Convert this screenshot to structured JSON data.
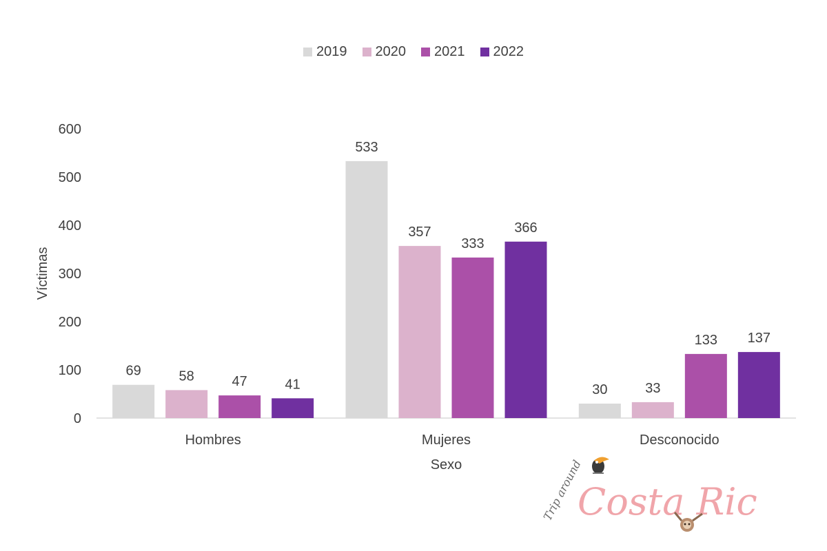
{
  "chart_data": {
    "type": "bar",
    "categories": [
      "Hombres",
      "Mujeres",
      "Desconocido"
    ],
    "series": [
      {
        "name": "2019",
        "values": [
          69,
          533,
          30
        ],
        "color": "#d9d9d9"
      },
      {
        "name": "2020",
        "values": [
          58,
          357,
          33
        ],
        "color": "#dcb2cc"
      },
      {
        "name": "2021",
        "values": [
          47,
          333,
          133
        ],
        "color": "#ab50a8"
      },
      {
        "name": "2022",
        "values": [
          41,
          366,
          137
        ],
        "color": "#7030a0"
      }
    ],
    "xlabel": "Sexo",
    "ylabel": "Víctimas",
    "ylim": [
      0,
      600
    ],
    "yticks": [
      0,
      100,
      200,
      300,
      400,
      500,
      600
    ],
    "grid": false,
    "legend_position": "top-center",
    "data_labels": true
  },
  "watermark": {
    "script_text": "Trip around",
    "brand_text": "Costa Rica"
  }
}
